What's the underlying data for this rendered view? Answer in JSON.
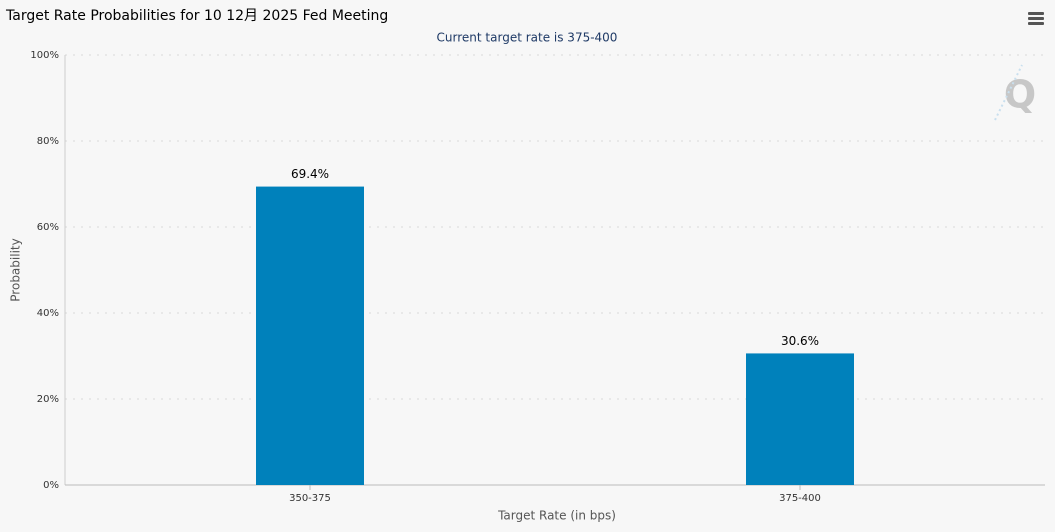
{
  "chart_data": {
    "type": "bar",
    "title": "Target Rate Probabilities for 10 12月 2025 Fed Meeting",
    "subtitle": "Current target rate is 375-400",
    "x_label": "Target Rate (in bps)",
    "y_label": "Probability",
    "categories": [
      "350-375",
      "375-400"
    ],
    "values": [
      69.4,
      30.6
    ],
    "value_labels": [
      "69.4%",
      "30.6%"
    ],
    "color": "#0081bb",
    "ylim": [
      0,
      100
    ],
    "yticks": [
      {
        "value": 0,
        "label": "0%"
      },
      {
        "value": 20,
        "label": "20%"
      },
      {
        "value": 40,
        "label": "40%"
      },
      {
        "value": 60,
        "label": "60%"
      },
      {
        "value": 80,
        "label": "80%"
      },
      {
        "value": 100,
        "label": "100%"
      }
    ],
    "grid": true
  }
}
